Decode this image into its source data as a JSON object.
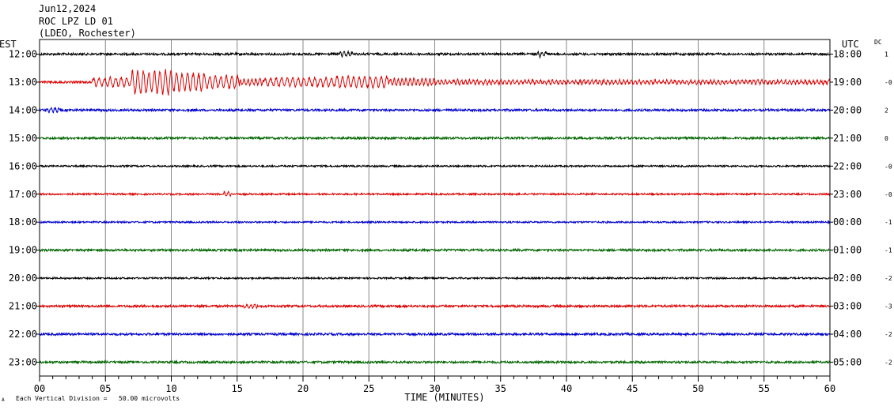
{
  "header": {
    "date": "Jun12,2024",
    "station": "ROC LPZ LD 01",
    "network": "(LDEO, Rochester)"
  },
  "left_zone": "EST",
  "right_zone": "UTC",
  "dc_title": "DC",
  "footer": {
    "corner_mark": "A",
    "scale_note": "Each Vertical Division =   50.00 microvolts"
  },
  "colors": {
    "cycle": [
      "#000000",
      "#dd0000",
      "#0000cc",
      "#006600"
    ],
    "grid": "#888888"
  },
  "chart_data": {
    "type": "line",
    "title": "",
    "xlabel": "TIME (MINUTES)",
    "xlim": [
      0,
      60
    ],
    "x_ticks": [
      "00",
      "05",
      "10",
      "15",
      "20",
      "25",
      "30",
      "35",
      "40",
      "45",
      "50",
      "55",
      "60"
    ],
    "series": [
      {
        "left_label": "12:00",
        "right_label": "18:00",
        "dc": "1",
        "amplitude": 2,
        "events": [
          [
            22.8,
            23.8,
            3
          ],
          [
            37.8,
            38.5,
            3
          ]
        ]
      },
      {
        "left_label": "13:00",
        "right_label": "19:00",
        "dc": "-0",
        "amplitude": 2,
        "events": [
          [
            4.0,
            7.0,
            6
          ],
          [
            7.0,
            10.0,
            16
          ],
          [
            10.0,
            12.5,
            13
          ],
          [
            12.5,
            15.2,
            9
          ],
          [
            15.2,
            17.0,
            4
          ],
          [
            17.0,
            22.5,
            6
          ],
          [
            22.5,
            26.5,
            8
          ],
          [
            26.5,
            30.0,
            5
          ],
          [
            30.0,
            34.0,
            3
          ],
          [
            34.0,
            60.0,
            2.5
          ]
        ]
      },
      {
        "left_label": "14:00",
        "right_label": "20:00",
        "dc": "2",
        "amplitude": 2,
        "events": [
          [
            0.5,
            1.5,
            3
          ]
        ]
      },
      {
        "left_label": "15:00",
        "right_label": "21:00",
        "dc": "0",
        "amplitude": 2,
        "events": []
      },
      {
        "left_label": "16:00",
        "right_label": "22:00",
        "dc": "-0",
        "amplitude": 1.5,
        "events": []
      },
      {
        "left_label": "17:00",
        "right_label": "23:00",
        "dc": "-0",
        "amplitude": 1.5,
        "events": [
          [
            14.0,
            14.6,
            3
          ]
        ]
      },
      {
        "left_label": "18:00",
        "right_label": "00:00",
        "dc": "-1",
        "amplitude": 1.5,
        "events": []
      },
      {
        "left_label": "19:00",
        "right_label": "01:00",
        "dc": "-1",
        "amplitude": 2,
        "events": []
      },
      {
        "left_label": "20:00",
        "right_label": "02:00",
        "dc": "-2",
        "amplitude": 1.5,
        "events": []
      },
      {
        "left_label": "21:00",
        "right_label": "03:00",
        "dc": "-3",
        "amplitude": 2,
        "events": [
          [
            15.5,
            16.5,
            3
          ]
        ]
      },
      {
        "left_label": "22:00",
        "right_label": "04:00",
        "dc": "-2",
        "amplitude": 2,
        "events": []
      },
      {
        "left_label": "23:00",
        "right_label": "05:00",
        "dc": "-2",
        "amplitude": 2,
        "events": []
      }
    ]
  }
}
